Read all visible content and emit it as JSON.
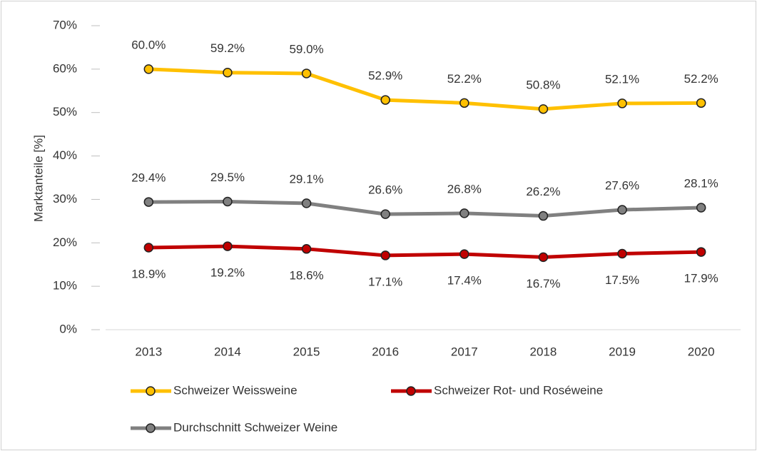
{
  "chart_data": {
    "type": "line",
    "y_label": "Marktanteile [%]",
    "categories": [
      "2013",
      "2014",
      "2015",
      "2016",
      "2017",
      "2018",
      "2019",
      "2020"
    ],
    "series": [
      {
        "name": "Schweizer Weissweine",
        "color": "#FFC000",
        "label_position": "above",
        "values": [
          60.0,
          59.2,
          59.0,
          52.9,
          52.2,
          50.8,
          52.1,
          52.2
        ],
        "value_labels": [
          "60.0%",
          "59.2%",
          "59.0%",
          "52.9%",
          "52.2%",
          "50.8%",
          "52.1%",
          "52.2%"
        ]
      },
      {
        "name": "Schweizer Rot- und Roséweine",
        "color": "#C00000",
        "label_position": "below",
        "values": [
          18.9,
          19.2,
          18.6,
          17.1,
          17.4,
          16.7,
          17.5,
          17.9
        ],
        "value_labels": [
          "18.9%",
          "19.2%",
          "18.6%",
          "17.1%",
          "17.4%",
          "16.7%",
          "17.5%",
          "17.9%"
        ]
      },
      {
        "name": "Durchschnitt Schweizer Weine",
        "color": "#808080",
        "label_position": "above",
        "values": [
          29.4,
          29.5,
          29.1,
          26.6,
          26.8,
          26.2,
          27.6,
          28.1
        ],
        "value_labels": [
          "29.4%",
          "29.5%",
          "29.1%",
          "26.6%",
          "26.8%",
          "26.2%",
          "27.6%",
          "28.1%"
        ]
      }
    ],
    "ylim": [
      0,
      70
    ],
    "yticks": [
      {
        "value": 0,
        "label": "0%"
      },
      {
        "value": 10,
        "label": "10%"
      },
      {
        "value": 20,
        "label": "20%"
      },
      {
        "value": 30,
        "label": "30%"
      },
      {
        "value": 40,
        "label": "40%"
      },
      {
        "value": 50,
        "label": "50%"
      },
      {
        "value": 60,
        "label": "60%"
      },
      {
        "value": 70,
        "label": "70%"
      }
    ],
    "grid": false
  }
}
